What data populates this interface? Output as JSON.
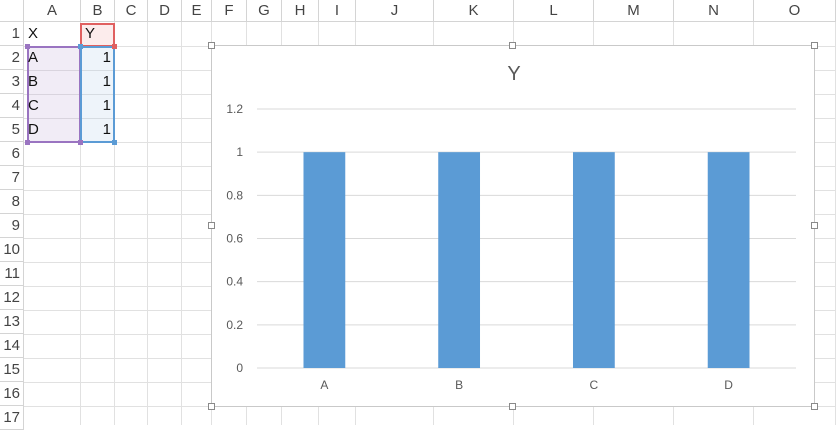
{
  "columns": [
    "A",
    "B",
    "C",
    "D",
    "E",
    "F",
    "G",
    "H",
    "I",
    "J",
    "K",
    "L",
    "M",
    "N",
    "O"
  ],
  "rows": [
    "1",
    "2",
    "3",
    "4",
    "5",
    "6",
    "7",
    "8",
    "9",
    "10",
    "11",
    "12",
    "13",
    "14",
    "15",
    "16",
    "17"
  ],
  "cells": {
    "A1": "X",
    "B1": "Y",
    "A2": "A",
    "B2": "1",
    "A3": "B",
    "B3": "1",
    "A4": "C",
    "B4": "1",
    "A5": "D",
    "B5": "1"
  },
  "colors": {
    "bar": "#5b9bd5",
    "range_x": "#9a74c1",
    "range_y": "#5b9bd5",
    "range_header": "#e06060"
  },
  "chart_data": {
    "type": "bar",
    "title": "Y",
    "categories": [
      "A",
      "B",
      "C",
      "D"
    ],
    "values": [
      1,
      1,
      1,
      1
    ],
    "ylim": [
      0,
      1.2
    ],
    "yticks": [
      "0",
      "0.2",
      "0.4",
      "0.6",
      "0.8",
      "1",
      "1.2"
    ],
    "grid": true,
    "legend": "none"
  }
}
